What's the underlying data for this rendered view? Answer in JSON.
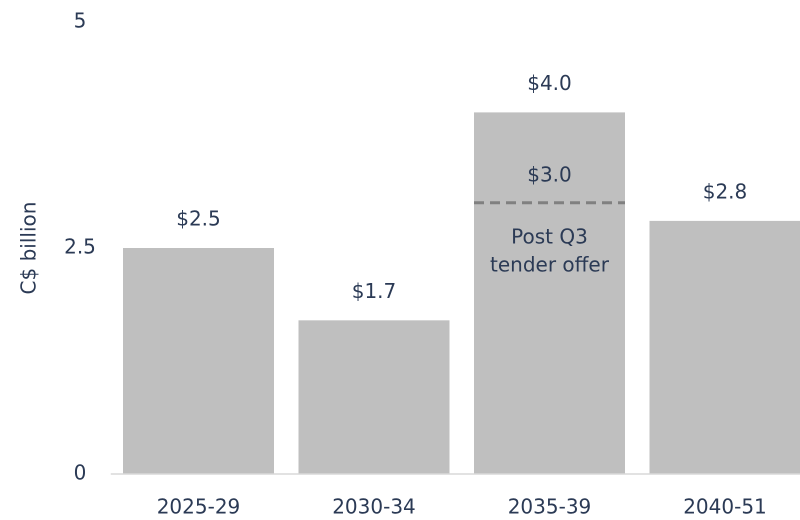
{
  "chart_data": {
    "type": "bar",
    "categories": [
      "2025-29",
      "2030-34",
      "2035-39",
      "2040-51"
    ],
    "values": [
      2.5,
      1.7,
      4.0,
      2.8
    ],
    "value_labels": [
      "$2.5",
      "$1.7",
      "$4.0",
      "$2.8"
    ],
    "color": "#bfbfbf",
    "ylabel": "C$ billion",
    "ylim": [
      0,
      5
    ],
    "yticks": [
      0,
      2.5,
      5
    ],
    "grid": false,
    "annotation": {
      "category": 2,
      "value": 3.0,
      "label": "$3.0",
      "text": [
        "Post Q3",
        "tender offer"
      ],
      "color": "#808080"
    }
  }
}
